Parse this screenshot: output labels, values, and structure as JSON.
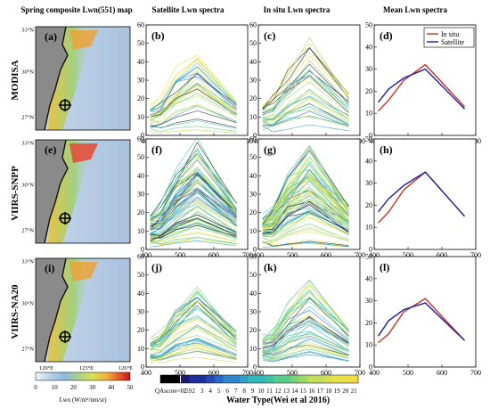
{
  "col_titles": {
    "map": "Spring composite Lwn(551) map",
    "sat": "Satellite Lwn spectra",
    "insitu": "In situ Lwn spectra",
    "mean": "Mean Lwn spectra"
  },
  "rows": [
    {
      "label": "MODISA",
      "panels": [
        "(a)",
        "(b)",
        "(c)",
        "(d)"
      ]
    },
    {
      "label": "VIIRS-SNPP",
      "panels": [
        "(e)",
        "(f)",
        "(g)",
        "(h)"
      ]
    },
    {
      "label": "VIIRS-NA20",
      "panels": [
        "(i)",
        "(j)",
        "(k)",
        "(l)"
      ]
    }
  ],
  "map_axes": {
    "lat_ticks": [
      "33°N",
      "30°N",
      "27°N"
    ],
    "lon_ticks": [
      "120°E",
      "123°E",
      "126°E"
    ]
  },
  "map_colorbar": {
    "ticks": [
      "0",
      "10",
      "20",
      "30",
      "40",
      "50"
    ],
    "label": "Lwn (W/m²/nm/sr)"
  },
  "water_type_colorbar": {
    "qa_label": "QAscore<0.59",
    "ticks": [
      "1",
      "2",
      "3",
      "4",
      "5",
      "6",
      "7",
      "8",
      "9",
      "10",
      "11",
      "12",
      "13",
      "14",
      "15",
      "16",
      "17",
      "18",
      "19",
      "20",
      "21"
    ],
    "title": "Water Type(Wei et al 2016)"
  },
  "legend": {
    "insitu": "In situ",
    "satellite": "Satellite"
  },
  "colors": {
    "insitu": "#c8321e",
    "satellite": "#1e1ea0",
    "land": "#8a8a8a"
  },
  "chart_data": [
    {
      "type": "line",
      "panel": "mean spectra",
      "xlabel": "",
      "ylabel": "",
      "xlim": [
        400,
        700
      ],
      "ylim": [
        0,
        50
      ],
      "x_ticks": [
        400,
        500,
        600,
        700
      ],
      "y_ticks": [
        0,
        10,
        20,
        30,
        40,
        50
      ],
      "x": [
        412,
        443,
        488,
        551,
        667
      ],
      "rows": [
        {
          "series": [
            {
              "name": "In situ",
              "values": [
                11,
                16,
                25,
                32,
                13
              ]
            },
            {
              "name": "Satellite",
              "values": [
                15,
                21,
                26,
                30,
                12
              ]
            }
          ]
        },
        {
          "series": [
            {
              "name": "In situ",
              "values": [
                12,
                17,
                27,
                35,
                15
              ]
            },
            {
              "name": "Satellite",
              "values": [
                17,
                23,
                29,
                35,
                15
              ]
            }
          ]
        },
        {
          "series": [
            {
              "name": "In situ",
              "values": [
                11,
                15,
                25,
                31,
                12
              ]
            },
            {
              "name": "Satellite",
              "values": [
                14,
                21,
                26,
                29,
                12
              ]
            }
          ]
        }
      ]
    },
    {
      "type": "line",
      "panel": "individual spectra",
      "xlabel": "",
      "ylabel": "",
      "xlim": [
        400,
        700
      ],
      "ylim": [
        0,
        60
      ],
      "x_ticks": [
        400,
        500,
        600,
        700
      ],
      "y_ticks": [
        0,
        10,
        20,
        30,
        40,
        50,
        60
      ],
      "x": [
        412,
        443,
        488,
        551,
        667
      ],
      "series_count": {
        "sat": [
          32,
          72,
          42
        ],
        "insitu": [
          32,
          72,
          42
        ]
      },
      "peak_max": {
        "sat": [
          46,
          56,
          44
        ],
        "insitu": [
          49,
          52,
          48
        ]
      }
    }
  ]
}
